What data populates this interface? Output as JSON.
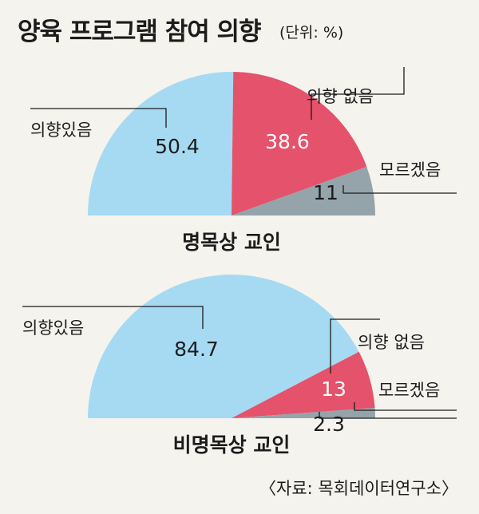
{
  "title": "양육 프로그램 참여 의향",
  "unit_label": "(단위: %)",
  "source": "〈자료: 목회데이터연구소〉",
  "colors": {
    "yes": "#a6daf3",
    "no": "#e4526b",
    "unknown": "#95a4aa"
  },
  "chart_data": [
    {
      "type": "pie",
      "subtitle": "명목상 교인",
      "slices": [
        {
          "label": "의향있음",
          "value": 50.4,
          "value_text": "50.4"
        },
        {
          "label": "의향 없음",
          "value": 38.6,
          "value_text": "38.6"
        },
        {
          "label": "모르겠음",
          "value": 11,
          "value_text": "11"
        }
      ]
    },
    {
      "type": "pie",
      "subtitle": "비명목상 교인",
      "slices": [
        {
          "label": "의향있음",
          "value": 84.7,
          "value_text": "84.7"
        },
        {
          "label": "의향 없음",
          "value": 13,
          "value_text": "13"
        },
        {
          "label": "모르겠음",
          "value": 2.3,
          "value_text": "2.3"
        }
      ]
    }
  ]
}
